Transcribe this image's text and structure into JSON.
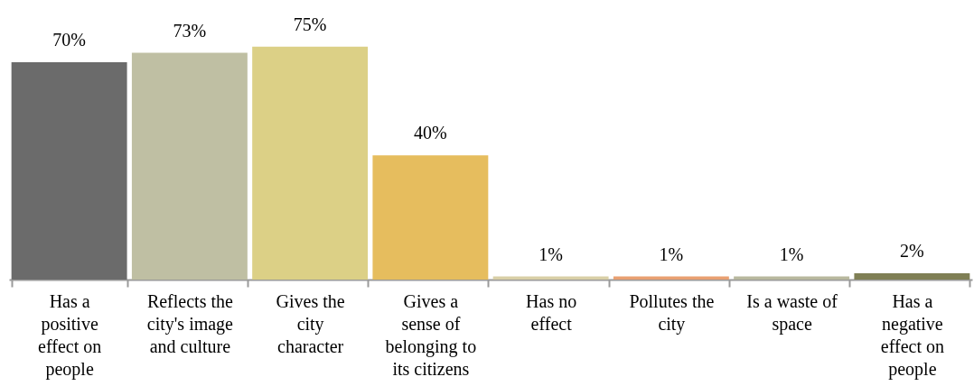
{
  "chart_data": {
    "type": "bar",
    "categories": [
      "Has a positive effect on people",
      "Reflects the city's image and culture",
      "Gives the city character",
      "Gives a sense of belonging to its citizens",
      "Has no effect",
      "Pollutes the city",
      "Is a waste of space",
      "Has a negative effect on people"
    ],
    "values": [
      70,
      73,
      75,
      40,
      1,
      1,
      1,
      2
    ],
    "colors": [
      "#6b6b6b",
      "#bfbfa3",
      "#dcd086",
      "#e6bd5e",
      "#d9cfa6",
      "#e9a071",
      "#b8b89e",
      "#7f7f55"
    ],
    "value_labels": [
      "70%",
      "73%",
      "75%",
      "40%",
      "1%",
      "1%",
      "1%",
      "2%"
    ]
  }
}
